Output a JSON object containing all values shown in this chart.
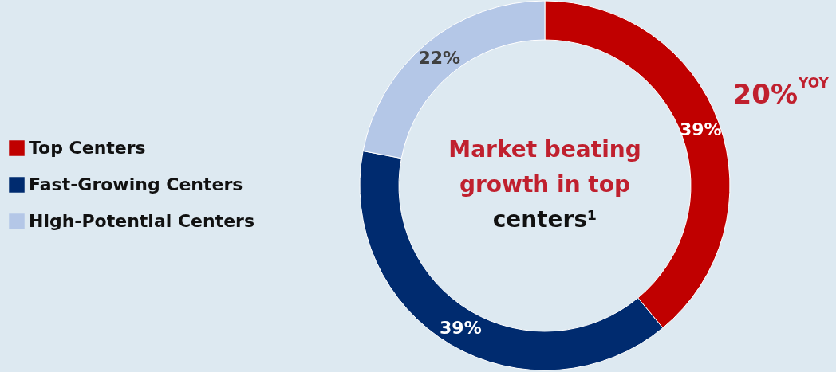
{
  "chart_data": {
    "type": "donut",
    "categories": [
      "Top Centers",
      "Fast-Growing Centers",
      "High-Potential Centers"
    ],
    "values": [
      39,
      39,
      22
    ],
    "colors": [
      "#c00000",
      "#002b6f",
      "#b4c7e7"
    ],
    "value_labels": [
      "39%",
      "39%",
      "22%"
    ],
    "legend": "left",
    "annotations": [
      "Market beating",
      "growth in top",
      "centers¹",
      "20%$^{YOY}$"
    ]
  }
}
